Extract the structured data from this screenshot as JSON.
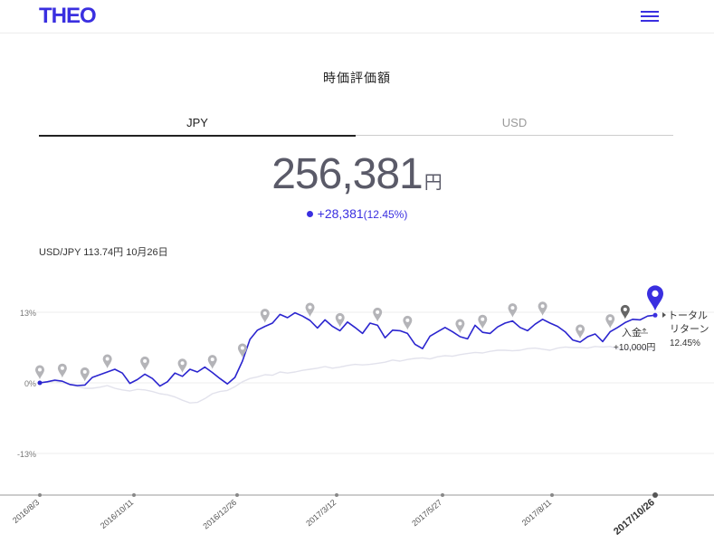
{
  "header": {
    "logo": "THEO",
    "menu_icon": "hamburger-menu-icon",
    "accent_color": "#3a2fe0"
  },
  "title": "時価評価額",
  "tabs": [
    {
      "label": "JPY",
      "active": true
    },
    {
      "label": "USD",
      "active": false
    }
  ],
  "valuation": {
    "amount": "256,381",
    "unit": "円",
    "change": "+28,381",
    "change_pct": "(12.45%)"
  },
  "fx_rate": "USD/JPY 113.74円 10月26日",
  "chart_data": {
    "type": "line",
    "y_ticks": [
      "13%",
      "0%",
      "-13%"
    ],
    "x_ticks": [
      "2016/8/3",
      "2016/10/11",
      "2016/12/26",
      "2017/3/12",
      "2017/5/27",
      "2017/8/11",
      "2017/10/26"
    ],
    "series": [
      {
        "color": "#2b25cf",
        "values": [
          0.0,
          0.2,
          0.5,
          0.3,
          -0.3,
          -0.5,
          -0.4,
          1.0,
          1.5,
          2.0,
          2.5,
          1.8,
          -0.1,
          0.6,
          1.6,
          0.8,
          -0.6,
          0.2,
          1.8,
          1.2,
          2.5,
          2.0,
          2.9,
          1.9,
          0.8,
          -0.2,
          1.0,
          4.0,
          8.0,
          9.7,
          10.4,
          11.0,
          12.6,
          12.0,
          12.9,
          12.3,
          11.5,
          10.1,
          11.6,
          10.4,
          9.6,
          11.2,
          10.2,
          9.1,
          11.0,
          10.6,
          8.3,
          9.7,
          9.6,
          9.1,
          7.1,
          6.3,
          8.6,
          9.4,
          10.2,
          9.4,
          8.5,
          8.1,
          10.6,
          9.3,
          9.1,
          10.3,
          11.0,
          11.4,
          10.2,
          9.6,
          10.8,
          11.7,
          11.0,
          10.4,
          9.4,
          7.9,
          7.5,
          8.5,
          9.0,
          7.6,
          9.4,
          10.2,
          11.1,
          11.7,
          11.6,
          12.3,
          12.45
        ]
      },
      {
        "color": "#e2e2ec",
        "values": [
          0.0,
          0.1,
          0.3,
          0.0,
          -0.3,
          -0.7,
          -1.0,
          -1.0,
          -0.8,
          -0.5,
          -1.0,
          -1.3,
          -1.5,
          -1.2,
          -1.3,
          -1.6,
          -2.0,
          -2.2,
          -2.6,
          -3.2,
          -3.7,
          -3.6,
          -2.9,
          -2.0,
          -1.6,
          -1.4,
          -0.7,
          0.2,
          0.8,
          1.1,
          1.5,
          1.4,
          2.0,
          1.8,
          2.0,
          2.3,
          2.5,
          2.7,
          3.0,
          2.7,
          2.9,
          3.2,
          3.4,
          3.3,
          3.4,
          3.6,
          3.8,
          4.2,
          4.0,
          4.3,
          4.5,
          4.6,
          4.4,
          4.8,
          5.0,
          4.9,
          5.2,
          5.4,
          5.6,
          5.5,
          5.8,
          6.0,
          6.0,
          5.9,
          6.0,
          6.3,
          6.4,
          6.2,
          6.0,
          6.4,
          6.6,
          6.5,
          6.5,
          6.4,
          6.7,
          6.6,
          6.7,
          6.3,
          6.2,
          6.4,
          6.5,
          6.2,
          6.1
        ]
      }
    ],
    "deposit_markers": [
      0,
      3,
      6,
      9,
      14,
      19,
      23,
      27,
      30,
      36,
      40,
      45,
      49,
      56,
      59,
      63,
      67,
      72,
      76,
      78
    ],
    "latest_marker_label": [
      "トータル",
      "リターン",
      "12.45%"
    ],
    "deposit_label": [
      "入金",
      "+10,000円"
    ],
    "ylim": [
      -20,
      17
    ]
  }
}
